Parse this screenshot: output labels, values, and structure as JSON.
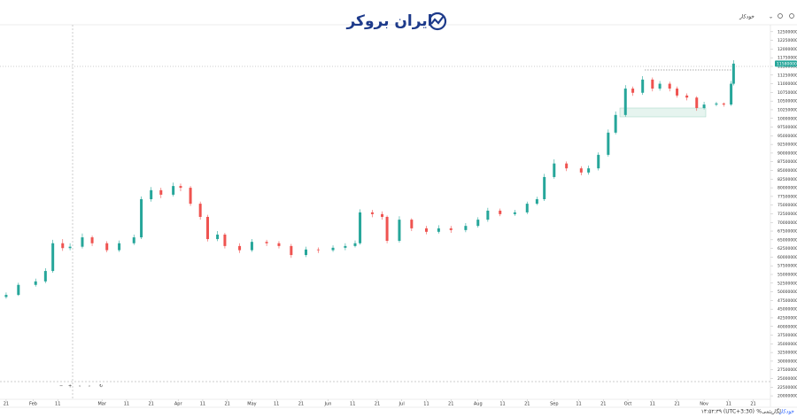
{
  "header": {
    "logo": "ایران بروکر",
    "menu": "خودکار"
  },
  "footer": {
    "auto": "خودکار",
    "log": "لگاریتمی",
    "percent": "%",
    "clock": "۱۴:۵۲:۳۹ (UTC+3:30)"
  },
  "chart_data": {
    "type": "candlestick",
    "up_color": "#26a69a",
    "down_color": "#ef5350",
    "grid": false,
    "x": [
      0,
      5,
      12,
      16,
      19,
      23,
      26,
      31,
      35,
      41,
      46,
      52,
      55,
      59,
      63,
      68,
      71,
      75,
      79,
      82,
      86,
      89,
      95,
      100,
      106,
      111,
      116,
      122,
      127,
      133,
      138,
      142,
      144,
      149,
      153,
      155,
      160,
      165,
      171,
      176,
      181,
      187,
      192,
      196,
      201,
      207,
      212,
      216,
      219,
      223,
      228,
      234,
      237,
      241,
      245,
      248,
      252,
      255,
      259,
      263,
      266,
      270,
      273,
      277,
      281,
      284,
      289,
      292,
      295,
      296
    ],
    "open": [
      48500000,
      49100000,
      52000000,
      53000000,
      56000000,
      64000000,
      62600000,
      63000000,
      65700000,
      64000000,
      62000000,
      64000000,
      65700000,
      76700000,
      79300000,
      78000000,
      80500000,
      80000000,
      75400000,
      71600000,
      65200000,
      66500000,
      63200000,
      62000000,
      64400000,
      64000000,
      63200000,
      60600000,
      62200000,
      62000000,
      62700000,
      63200000,
      64000000,
      72900000,
      72400000,
      71600000,
      64700000,
      70800000,
      68300000,
      67300000,
      68300000,
      67800000,
      69000000,
      70800000,
      73400000,
      72400000,
      72900000,
      75400000,
      76700000,
      83100000,
      87000000,
      85600000,
      84400000,
      85600000,
      89500000,
      95900000,
      101000000,
      108600000,
      107400000,
      111200000,
      108600000,
      110000000,
      108600000,
      106600000,
      106000000,
      103000000,
      104000000,
      104300000,
      104000000,
      110000000
    ],
    "high": [
      49800000,
      52600000,
      53800000,
      56800000,
      65000000,
      65200000,
      64000000,
      66800000,
      66200000,
      64600000,
      64800000,
      66500000,
      77500000,
      80200000,
      80000000,
      81500000,
      81200000,
      80500000,
      76000000,
      72200000,
      67500000,
      67000000,
      64000000,
      65200000,
      65000000,
      64600000,
      63800000,
      63000000,
      62800000,
      63400000,
      64000000,
      64800000,
      73800000,
      73600000,
      73200000,
      72000000,
      71800000,
      71200000,
      69000000,
      69200000,
      69000000,
      69800000,
      71500000,
      74200000,
      74000000,
      73600000,
      76000000,
      77400000,
      84000000,
      88200000,
      87600000,
      86200000,
      86400000,
      90200000,
      96800000,
      102000000,
      109600000,
      109200000,
      112200000,
      111800000,
      110800000,
      110600000,
      109200000,
      107200000,
      106400000,
      104800000,
      104800000,
      104600000,
      110800000,
      116800000
    ],
    "low": [
      48000000,
      48800000,
      51500000,
      52500000,
      55500000,
      61800000,
      62000000,
      62500000,
      63200000,
      61400000,
      61500000,
      63500000,
      65200000,
      76000000,
      77000000,
      77500000,
      79000000,
      74800000,
      70800000,
      64500000,
      64600000,
      62500000,
      61200000,
      61500000,
      63200000,
      62500000,
      59800000,
      60000000,
      61200000,
      61500000,
      62000000,
      62800000,
      63600000,
      71500000,
      70800000,
      64000000,
      64200000,
      67500000,
      66600000,
      66800000,
      67000000,
      67200000,
      68500000,
      70200000,
      71800000,
      71900000,
      72400000,
      75000000,
      76200000,
      82600000,
      84800000,
      83600000,
      83800000,
      85000000,
      89000000,
      95400000,
      100500000,
      106500000,
      106800000,
      107800000,
      108000000,
      107800000,
      106000000,
      105200000,
      102200000,
      102600000,
      103500000,
      103400000,
      103600000,
      109500000
    ],
    "close": [
      49100000,
      52000000,
      53000000,
      56000000,
      64000000,
      62600000,
      63000000,
      65700000,
      64000000,
      62000000,
      64000000,
      65700000,
      76700000,
      79300000,
      78000000,
      80500000,
      80000000,
      75400000,
      71600000,
      65200000,
      66500000,
      63200000,
      62000000,
      64400000,
      64000000,
      63200000,
      60600000,
      62200000,
      62000000,
      62700000,
      63200000,
      64000000,
      72900000,
      72400000,
      71600000,
      64700000,
      70800000,
      68300000,
      67300000,
      68300000,
      67800000,
      69000000,
      70800000,
      73400000,
      72400000,
      72900000,
      75400000,
      76700000,
      83100000,
      87000000,
      85600000,
      84400000,
      85600000,
      89500000,
      95900000,
      101000000,
      108600000,
      107400000,
      111200000,
      108600000,
      110000000,
      108600000,
      106600000,
      106000000,
      103000000,
      104000000,
      104300000,
      104000000,
      110000000,
      115800000
    ],
    "xlim": [
      -2.5,
      311
    ],
    "xticks": [
      {
        "value": 0,
        "label": "21"
      },
      {
        "value": 11,
        "label": "Feb"
      },
      {
        "value": 21,
        "label": "11"
      },
      {
        "value": 39,
        "label": "Mar"
      },
      {
        "value": 49,
        "label": "11"
      },
      {
        "value": 59,
        "label": "21"
      },
      {
        "value": 70,
        "label": "Apr"
      },
      {
        "value": 80,
        "label": "11"
      },
      {
        "value": 90,
        "label": "21"
      },
      {
        "value": 100,
        "label": "May"
      },
      {
        "value": 110,
        "label": "11"
      },
      {
        "value": 120,
        "label": "21"
      },
      {
        "value": 131,
        "label": "Jun"
      },
      {
        "value": 141,
        "label": "11"
      },
      {
        "value": 151,
        "label": "21"
      },
      {
        "value": 161,
        "label": "Jul"
      },
      {
        "value": 171,
        "label": "11"
      },
      {
        "value": 181,
        "label": "21"
      },
      {
        "value": 192,
        "label": "Aug"
      },
      {
        "value": 202,
        "label": "11"
      },
      {
        "value": 212,
        "label": "21"
      },
      {
        "value": 223,
        "label": "Sep"
      },
      {
        "value": 233,
        "label": "11"
      },
      {
        "value": 243,
        "label": "21"
      },
      {
        "value": 253,
        "label": "Oct"
      },
      {
        "value": 263,
        "label": "11"
      },
      {
        "value": 273,
        "label": "21"
      },
      {
        "value": 284,
        "label": "Nov"
      },
      {
        "value": 294,
        "label": "11"
      },
      {
        "value": 304,
        "label": "21"
      }
    ],
    "ylim": [
      19000000,
      127000000
    ],
    "yticks": [
      20000000,
      22500000,
      25000000,
      27500000,
      30000000,
      32500000,
      35000000,
      37500000,
      40000000,
      42500000,
      45000000,
      47500000,
      50000000,
      52500000,
      55000000,
      57500000,
      60000000,
      62500000,
      65000000,
      67500000,
      70000000,
      72500000,
      75000000,
      77500000,
      80000000,
      82500000,
      85000000,
      87500000,
      90000000,
      92500000,
      95000000,
      97500000,
      100000000,
      102500000,
      105000000,
      107500000,
      110000000,
      112500000,
      115000000,
      117500000,
      120000000,
      122500000,
      125000000
    ]
  }
}
